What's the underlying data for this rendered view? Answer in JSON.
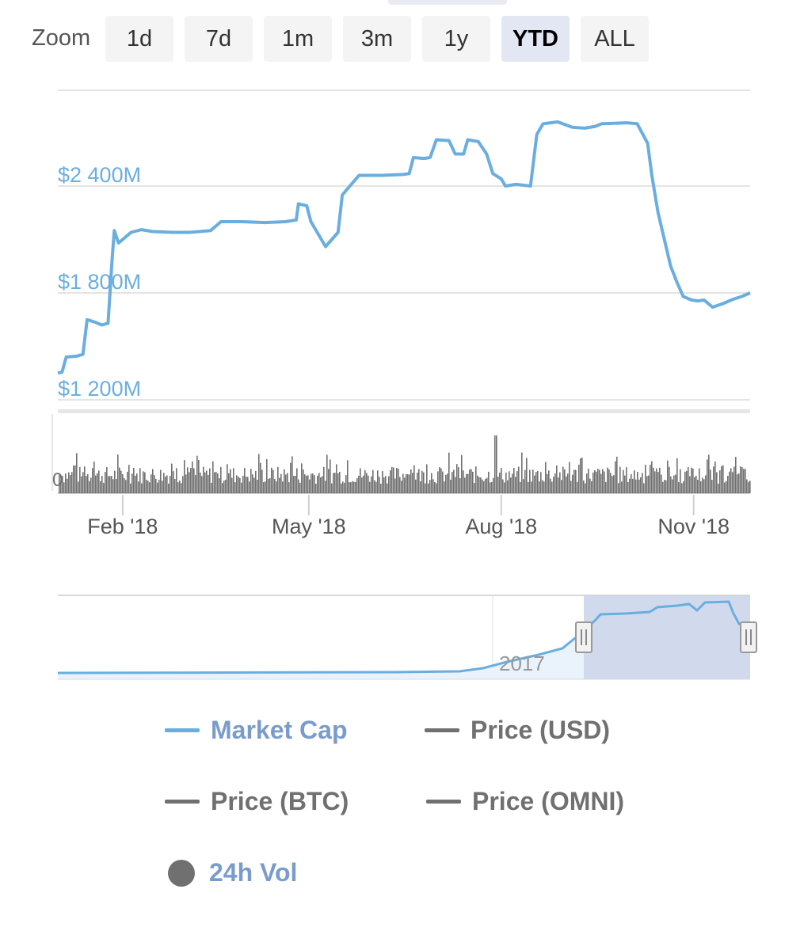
{
  "zoom": {
    "label": "Zoom",
    "buttons": [
      "1d",
      "7d",
      "1m",
      "3m",
      "1y",
      "YTD",
      "ALL"
    ],
    "active": "YTD"
  },
  "colors": {
    "market_cap": "#6aaee0",
    "volume": "#707070",
    "grid": "#e4e4e4",
    "legend_active": "#7a9ccc",
    "legend_inactive": "#707070",
    "navigator_mask": "#c9d4ea"
  },
  "chart_data": {
    "type": "line",
    "y_axis": {
      "ticks": [
        1200,
        1800,
        2400
      ],
      "tick_labels": [
        "$1 200M",
        "$1 800M",
        "$2 400M"
      ],
      "range": [
        1200,
        2800
      ],
      "grid": true
    },
    "x_axis": {
      "range": [
        "2018-01-01",
        "2018-11-28"
      ],
      "ticks": [
        "2018-02-01",
        "2018-05-01",
        "2018-08-01",
        "2018-11-01"
      ],
      "tick_labels": [
        "Feb '18",
        "May '18",
        "Aug '18",
        "Nov '18"
      ]
    },
    "series": [
      {
        "name": "Market Cap",
        "units": "USD millions",
        "points": [
          [
            "2018-01-01",
            1350
          ],
          [
            "2018-01-03",
            1355
          ],
          [
            "2018-01-05",
            1440
          ],
          [
            "2018-01-10",
            1445
          ],
          [
            "2018-01-13",
            1455
          ],
          [
            "2018-01-15",
            1650
          ],
          [
            "2018-01-19",
            1635
          ],
          [
            "2018-01-22",
            1620
          ],
          [
            "2018-01-25",
            1630
          ],
          [
            "2018-01-27",
            2000
          ],
          [
            "2018-01-28",
            2150
          ],
          [
            "2018-01-30",
            2080
          ],
          [
            "2018-02-05",
            2140
          ],
          [
            "2018-02-10",
            2155
          ],
          [
            "2018-02-15",
            2145
          ],
          [
            "2018-02-25",
            2140
          ],
          [
            "2018-03-05",
            2140
          ],
          [
            "2018-03-15",
            2150
          ],
          [
            "2018-03-20",
            2200
          ],
          [
            "2018-03-30",
            2200
          ],
          [
            "2018-04-10",
            2195
          ],
          [
            "2018-04-20",
            2200
          ],
          [
            "2018-04-25",
            2210
          ],
          [
            "2018-04-26",
            2300
          ],
          [
            "2018-04-30",
            2290
          ],
          [
            "2018-05-02",
            2200
          ],
          [
            "2018-05-06",
            2120
          ],
          [
            "2018-05-09",
            2060
          ],
          [
            "2018-05-12",
            2100
          ],
          [
            "2018-05-15",
            2140
          ],
          [
            "2018-05-17",
            2350
          ],
          [
            "2018-05-25",
            2460
          ],
          [
            "2018-06-05",
            2460
          ],
          [
            "2018-06-15",
            2465
          ],
          [
            "2018-06-18",
            2470
          ],
          [
            "2018-06-20",
            2560
          ],
          [
            "2018-06-25",
            2555
          ],
          [
            "2018-06-28",
            2560
          ],
          [
            "2018-07-01",
            2660
          ],
          [
            "2018-07-07",
            2655
          ],
          [
            "2018-07-10",
            2580
          ],
          [
            "2018-07-14",
            2580
          ],
          [
            "2018-07-16",
            2660
          ],
          [
            "2018-07-21",
            2650
          ],
          [
            "2018-07-25",
            2580
          ],
          [
            "2018-07-28",
            2470
          ],
          [
            "2018-08-01",
            2440
          ],
          [
            "2018-08-03",
            2400
          ],
          [
            "2018-08-08",
            2410
          ],
          [
            "2018-08-15",
            2400
          ],
          [
            "2018-08-18",
            2690
          ],
          [
            "2018-08-21",
            2750
          ],
          [
            "2018-08-28",
            2760
          ],
          [
            "2018-09-04",
            2730
          ],
          [
            "2018-09-10",
            2725
          ],
          [
            "2018-09-15",
            2735
          ],
          [
            "2018-09-18",
            2750
          ],
          [
            "2018-09-30",
            2755
          ],
          [
            "2018-10-05",
            2750
          ],
          [
            "2018-10-10",
            2640
          ],
          [
            "2018-10-12",
            2460
          ],
          [
            "2018-10-15",
            2250
          ],
          [
            "2018-10-18",
            2100
          ],
          [
            "2018-10-21",
            1950
          ],
          [
            "2018-10-24",
            1860
          ],
          [
            "2018-10-27",
            1780
          ],
          [
            "2018-10-31",
            1760
          ],
          [
            "2018-11-03",
            1755
          ],
          [
            "2018-11-06",
            1760
          ],
          [
            "2018-11-10",
            1720
          ],
          [
            "2018-11-15",
            1740
          ],
          [
            "2018-11-20",
            1765
          ],
          [
            "2018-11-24",
            1780
          ],
          [
            "2018-11-28",
            1800
          ]
        ]
      },
      {
        "name": "24h Vol",
        "type": "column"
      }
    ],
    "navigator": {
      "label": "2017",
      "selection": [
        "2018-01-01",
        "2018-11-28"
      ]
    }
  },
  "legend": [
    {
      "label": "Market Cap",
      "symbol": "line",
      "active": true
    },
    {
      "label": "Price (USD)",
      "symbol": "line",
      "active": false
    },
    {
      "label": "Price (BTC)",
      "symbol": "line",
      "active": false
    },
    {
      "label": "Price (OMNI)",
      "symbol": "line",
      "active": false
    },
    {
      "label": "24h Vol",
      "symbol": "dot",
      "active": true
    }
  ]
}
